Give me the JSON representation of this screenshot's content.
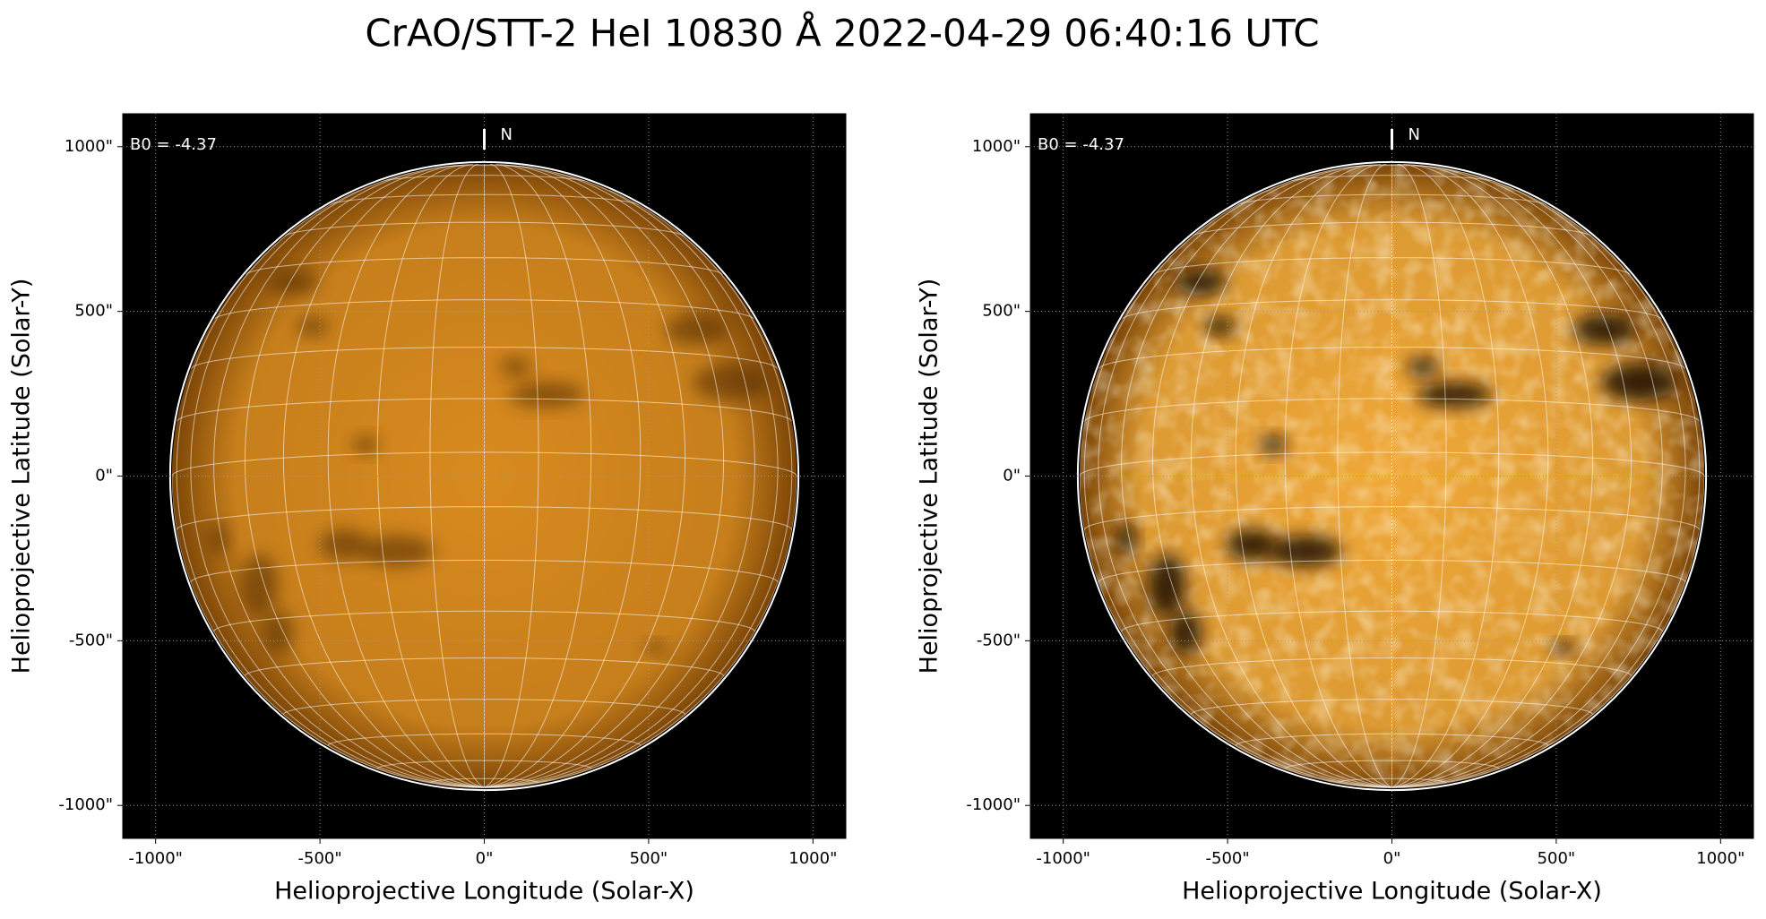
{
  "title": "CrAO/STT-2 HeI 10830 Å 2022-04-29 06:40:16 UTC",
  "chart_data": [
    {
      "type": "image",
      "annotation": "B0 = -4.37",
      "north_label": "N",
      "xlabel": "Helioprojective Longitude (Solar-X)",
      "ylabel": "Helioprojective Latitude (Solar-Y)",
      "xlim": [
        -1100,
        1100
      ],
      "ylim": [
        -1100,
        1100
      ],
      "xticks": [
        {
          "value": -1000,
          "label": "-1000\""
        },
        {
          "value": -500,
          "label": "-500\""
        },
        {
          "value": 0,
          "label": "0\""
        },
        {
          "value": 500,
          "label": "500\""
        },
        {
          "value": 1000,
          "label": "1000\""
        }
      ],
      "yticks": [
        {
          "value": -1000,
          "label": "-1000\""
        },
        {
          "value": -500,
          "label": "-500\""
        },
        {
          "value": 0,
          "label": "0\""
        },
        {
          "value": 500,
          "label": "500\""
        },
        {
          "value": 1000,
          "label": "1000\""
        }
      ],
      "grid": true,
      "color": "#d88a1e"
    },
    {
      "type": "image",
      "annotation": "B0 = -4.37",
      "north_label": "N",
      "xlabel": "Helioprojective Longitude (Solar-X)",
      "ylabel": "Helioprojective Latitude (Solar-Y)",
      "xlim": [
        -1100,
        1100
      ],
      "ylim": [
        -1100,
        1100
      ],
      "xticks": [
        {
          "value": -1000,
          "label": "-1000\""
        },
        {
          "value": -500,
          "label": "-500\""
        },
        {
          "value": 0,
          "label": "0\""
        },
        {
          "value": 500,
          "label": "500\""
        },
        {
          "value": 1000,
          "label": "1000\""
        }
      ],
      "yticks": [
        {
          "value": -1000,
          "label": "-1000\""
        },
        {
          "value": -500,
          "label": "-500\""
        },
        {
          "value": 0,
          "label": "0\""
        },
        {
          "value": 500,
          "label": "500\""
        },
        {
          "value": 1000,
          "label": "1000\""
        }
      ],
      "grid": true,
      "color": "#f0a838"
    }
  ]
}
